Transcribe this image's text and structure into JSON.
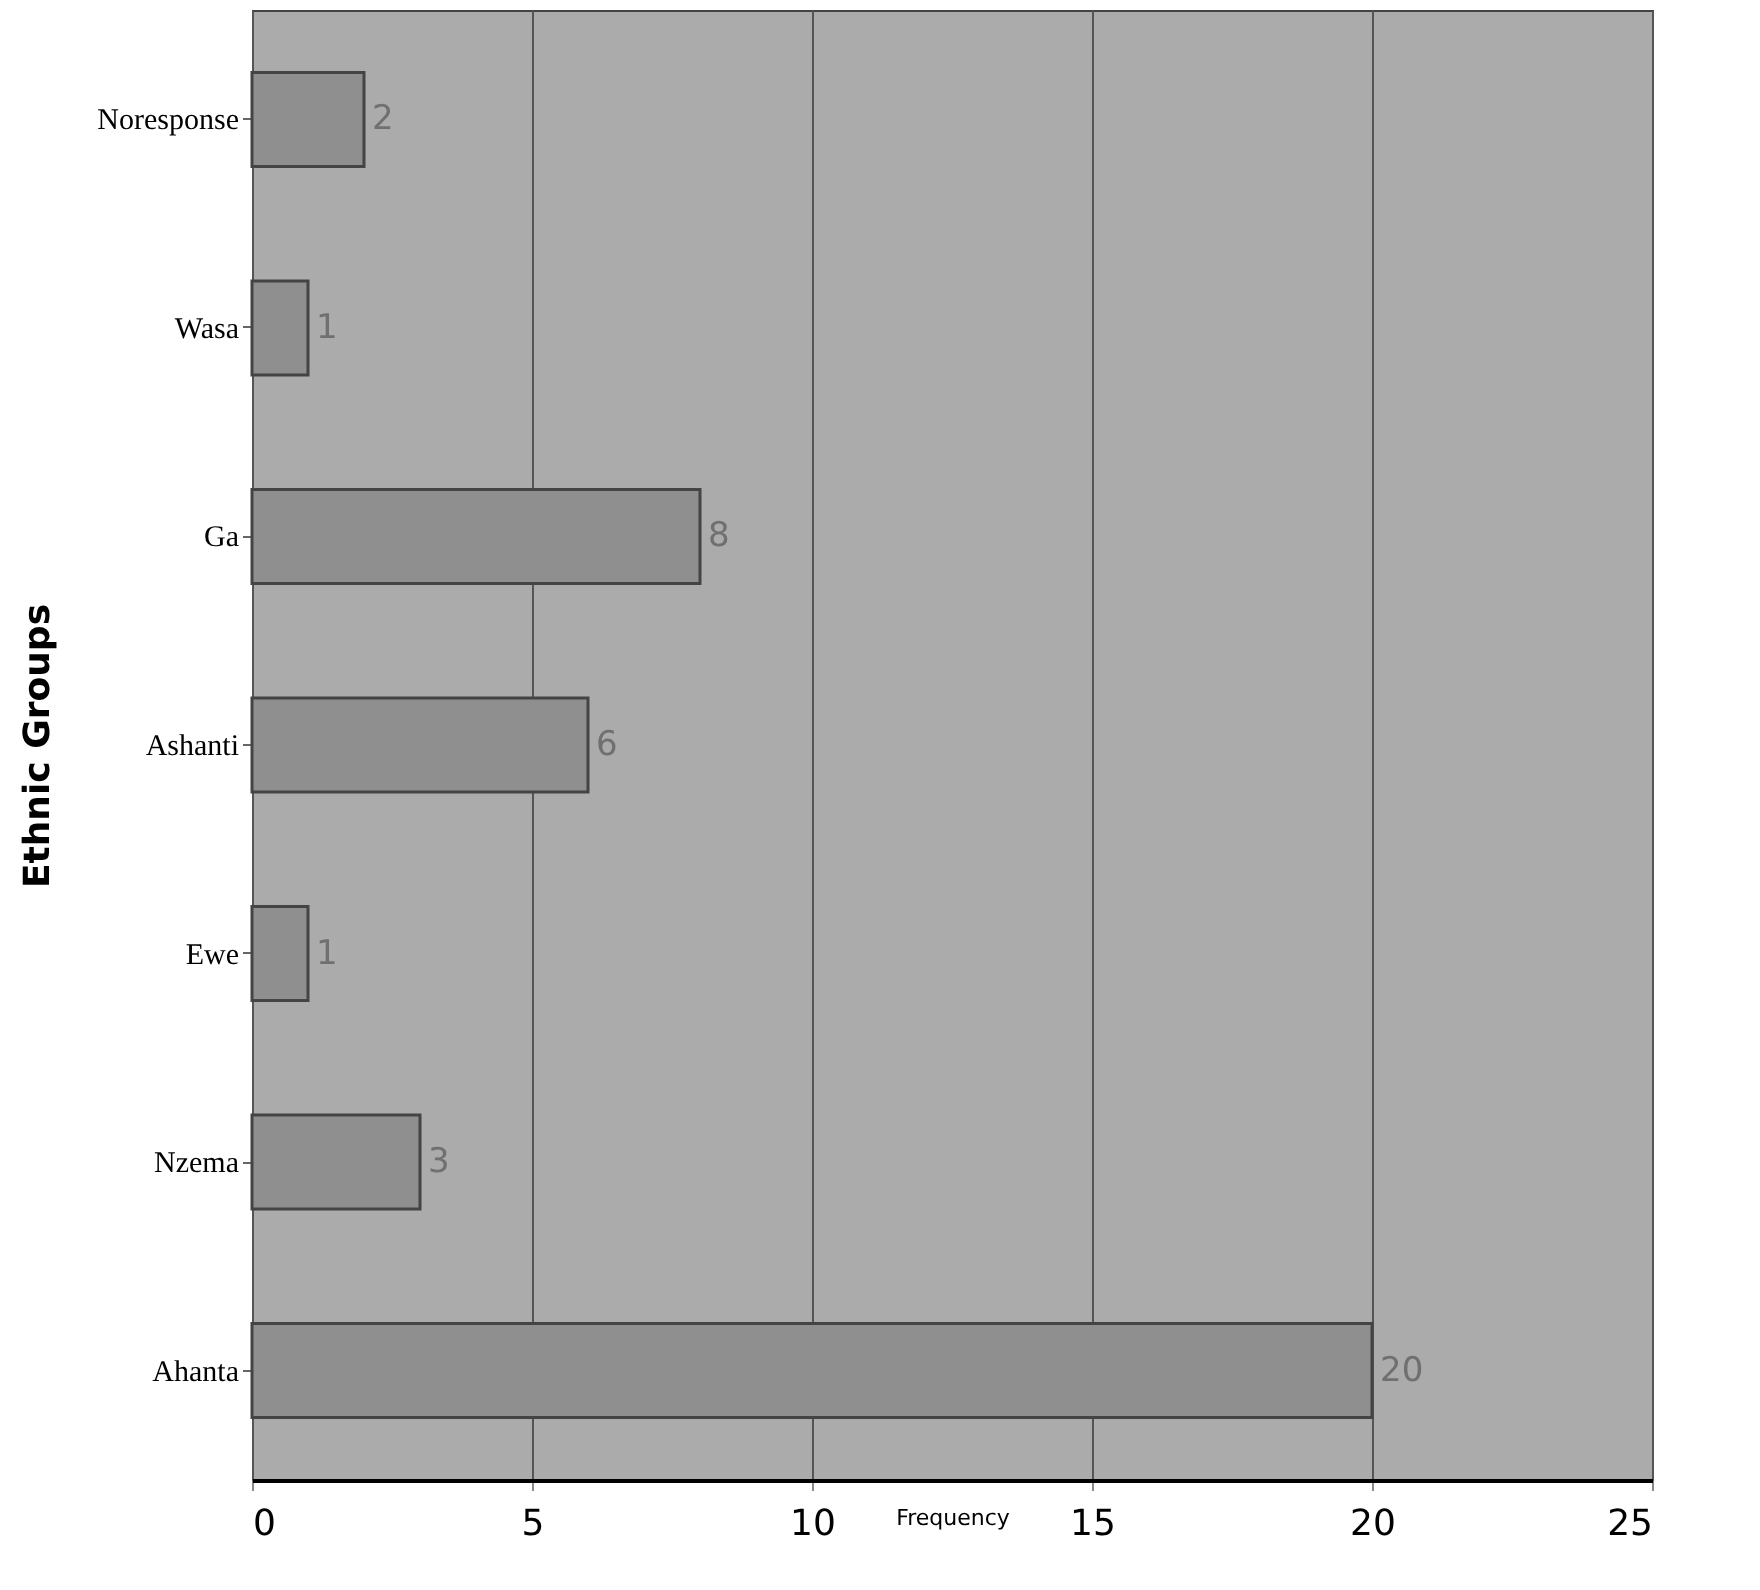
{
  "chart_data": {
    "type": "bar",
    "orientation": "horizontal",
    "xlabel": "Frequency",
    "ylabel": "Ethnic Groups",
    "categories": [
      "Noresponse",
      "Wasa",
      "Ga",
      "Ashanti",
      "Ewe",
      "Nzema",
      "Ahanta"
    ],
    "values": [
      2,
      1,
      8,
      6,
      1,
      3,
      20
    ],
    "color": "#8f8f8f",
    "xlim": [
      0,
      25
    ],
    "xticks": [
      0,
      5,
      10,
      15,
      20,
      25
    ],
    "grid": "x",
    "data_labels": true
  }
}
